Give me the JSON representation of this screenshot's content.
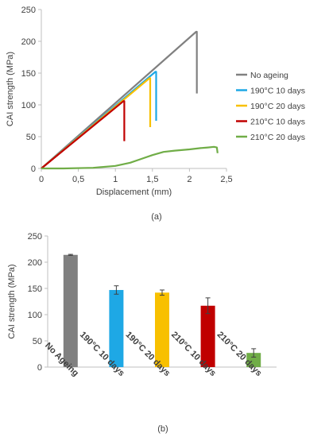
{
  "chart_data": [
    {
      "type": "line",
      "panel_label": "(a)",
      "xlabel": "Displacement (mm)",
      "ylabel": "CAI strength (MPa)",
      "xlim": [
        0,
        2.5
      ],
      "ylim": [
        0,
        250
      ],
      "x_ticks": [
        "0",
        "0,5",
        "1",
        "1,5",
        "2",
        "2,5"
      ],
      "y_ticks": [
        "0",
        "50",
        "100",
        "150",
        "200",
        "250"
      ],
      "grid": false,
      "legend_position": "right",
      "series": [
        {
          "name": "No ageing",
          "color": "#808080",
          "points": [
            [
              0,
              0
            ],
            [
              2.09,
              215
            ],
            [
              2.1,
              215
            ],
            [
              2.1,
              118
            ]
          ]
        },
        {
          "name": "190°C 10 days",
          "color": "#1ea8e5",
          "points": [
            [
              0,
              0
            ],
            [
              1.54,
              152
            ],
            [
              1.55,
              152
            ],
            [
              1.55,
              75
            ]
          ]
        },
        {
          "name": "190°C 20 days",
          "color": "#f8c000",
          "points": [
            [
              0,
              0
            ],
            [
              1.46,
              142
            ],
            [
              1.47,
              142
            ],
            [
              1.47,
              65
            ]
          ]
        },
        {
          "name": "210°C 10 days",
          "color": "#c00000",
          "points": [
            [
              0,
              0
            ],
            [
              1.11,
              106
            ],
            [
              1.12,
              106
            ],
            [
              1.12,
              43
            ]
          ]
        },
        {
          "name": "210°C 20 days",
          "color": "#70ad47",
          "points": [
            [
              0,
              0
            ],
            [
              0.3,
              0
            ],
            [
              0.7,
              1
            ],
            [
              1.0,
              4
            ],
            [
              1.2,
              9
            ],
            [
              1.35,
              15
            ],
            [
              1.5,
              21
            ],
            [
              1.65,
              26
            ],
            [
              1.8,
              28
            ],
            [
              2.0,
              30
            ],
            [
              2.15,
              32
            ],
            [
              2.25,
              33
            ],
            [
              2.33,
              34
            ],
            [
              2.37,
              33
            ],
            [
              2.38,
              24
            ]
          ]
        }
      ]
    },
    {
      "type": "bar",
      "panel_label": "(b)",
      "ylabel": "CAI strength (MPa)",
      "ylim": [
        0,
        250
      ],
      "y_ticks": [
        "0",
        "50",
        "100",
        "150",
        "200",
        "250"
      ],
      "categories": [
        "No Ageing",
        "190°C 10 days",
        "190°C 20 days",
        "210°C 10 days",
        "210°C 20 days"
      ],
      "values": [
        214,
        147,
        142,
        117,
        27
      ],
      "errors": [
        1,
        8,
        5,
        15,
        8
      ],
      "colors": [
        "#808080",
        "#1ea8e5",
        "#f8c000",
        "#c00000",
        "#70ad47"
      ],
      "grid": false
    }
  ]
}
